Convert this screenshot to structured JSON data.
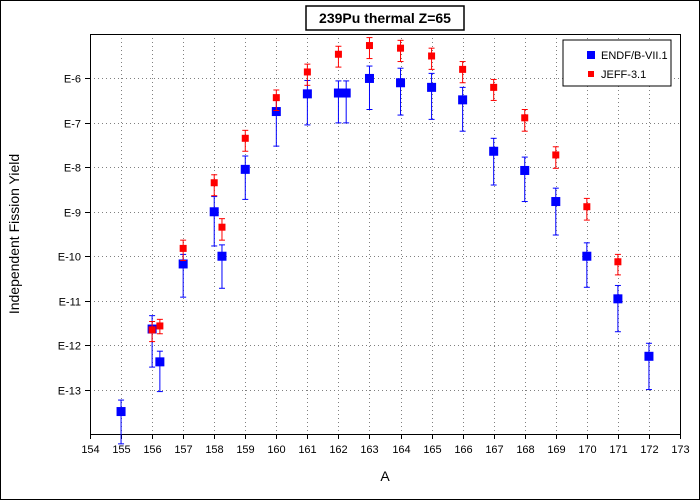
{
  "chart_data": {
    "type": "scatter",
    "title": "239Pu thermal Z=65",
    "xlabel": "A",
    "ylabel": "Independent Fission Yield",
    "xlim": [
      154,
      173
    ],
    "ylim": [
      1e-14,
      1e-05
    ],
    "yscale": "log",
    "x_ticks": [
      "154",
      "155",
      "156",
      "157",
      "158",
      "159",
      "160",
      "161",
      "162",
      "163",
      "164",
      "165",
      "166",
      "167",
      "168",
      "169",
      "170",
      "171",
      "172",
      "173"
    ],
    "y_ticks": [
      {
        "value": 1e-06,
        "label": "E-6"
      },
      {
        "value": 1e-07,
        "label": "E-7"
      },
      {
        "value": 1e-08,
        "label": "E-8"
      },
      {
        "value": 1e-09,
        "label": "E-9"
      },
      {
        "value": 1e-10,
        "label": "E-10"
      },
      {
        "value": 1e-11,
        "label": "E-11"
      },
      {
        "value": 1e-12,
        "label": "E-12"
      },
      {
        "value": 1e-13,
        "label": "E-13"
      }
    ],
    "grid": true,
    "legend_position": "top-right",
    "series": [
      {
        "name": "ENDF/B-VII.1",
        "color": "#0000ff",
        "marker": "square",
        "points": [
          {
            "x": 155,
            "y": 3.2e-14,
            "lo": 6e-15,
            "hi": 5.8e-14
          },
          {
            "x": 156,
            "y": 2.3e-12,
            "lo": 3.2e-13,
            "hi": 4.6e-12
          },
          {
            "x": 156.25,
            "y": 4.2e-13,
            "lo": 9e-14,
            "hi": 7.3e-13
          },
          {
            "x": 157,
            "y": 6.7e-11,
            "lo": 1.2e-11,
            "hi": 1.1e-10
          },
          {
            "x": 158,
            "y": 1e-09,
            "lo": 1.7e-10,
            "hi": 2.2e-09
          },
          {
            "x": 158.25,
            "y": 1e-10,
            "lo": 1.9e-11,
            "hi": 1.8e-10
          },
          {
            "x": 159,
            "y": 9e-09,
            "lo": 1.9e-09,
            "hi": 1.8e-08
          },
          {
            "x": 160,
            "y": 1.8e-07,
            "lo": 3e-08,
            "hi": 3.6e-07
          },
          {
            "x": 161,
            "y": 4.5e-07,
            "lo": 9e-08,
            "hi": 9e-07
          },
          {
            "x": 162,
            "y": 4.7e-07,
            "lo": 1e-07,
            "hi": 8.8e-07
          },
          {
            "x": 162.25,
            "y": 4.7e-07,
            "lo": 1e-07,
            "hi": 8.8e-07
          },
          {
            "x": 163,
            "y": 1e-06,
            "lo": 2e-07,
            "hi": 1.9e-06
          },
          {
            "x": 164,
            "y": 8e-07,
            "lo": 1.5e-07,
            "hi": 1.7e-06
          },
          {
            "x": 165,
            "y": 6.3e-07,
            "lo": 1.2e-07,
            "hi": 1.3e-06
          },
          {
            "x": 166,
            "y": 3.3e-07,
            "lo": 6.5e-08,
            "hi": 6.3e-07
          },
          {
            "x": 167,
            "y": 2.3e-08,
            "lo": 4e-09,
            "hi": 4.5e-08
          },
          {
            "x": 168,
            "y": 8.5e-09,
            "lo": 1.7e-09,
            "hi": 1.7e-08
          },
          {
            "x": 169,
            "y": 1.7e-09,
            "lo": 3e-10,
            "hi": 3.4e-09
          },
          {
            "x": 170,
            "y": 1e-10,
            "lo": 2e-11,
            "hi": 2e-10
          },
          {
            "x": 171,
            "y": 1.1e-11,
            "lo": 2e-12,
            "hi": 2.2e-11
          },
          {
            "x": 172,
            "y": 5.6e-13,
            "lo": 1e-13,
            "hi": 1.1e-12
          }
        ]
      },
      {
        "name": "JEFF-3.1",
        "color": "#ff0000",
        "marker": "square",
        "points": [
          {
            "x": 156,
            "y": 2.2e-12,
            "lo": 1.2e-12,
            "hi": 3.4e-12
          },
          {
            "x": 156.25,
            "y": 2.7e-12,
            "lo": 1.8e-12,
            "hi": 3.8e-12
          },
          {
            "x": 157,
            "y": 1.5e-10,
            "lo": 8e-11,
            "hi": 2.3e-10
          },
          {
            "x": 158,
            "y": 4.5e-09,
            "lo": 2.3e-09,
            "hi": 6.8e-09
          },
          {
            "x": 158.25,
            "y": 4.5e-10,
            "lo": 2.3e-10,
            "hi": 7e-10
          },
          {
            "x": 159,
            "y": 4.5e-08,
            "lo": 2.3e-08,
            "hi": 6.8e-08
          },
          {
            "x": 160,
            "y": 3.7e-07,
            "lo": 1.9e-07,
            "hi": 5.5e-07
          },
          {
            "x": 161,
            "y": 1.4e-06,
            "lo": 7e-07,
            "hi": 2.1e-06
          },
          {
            "x": 162,
            "y": 3.5e-06,
            "lo": 1.8e-06,
            "hi": 5.3e-06
          },
          {
            "x": 163,
            "y": 5.5e-06,
            "lo": 2.8e-06,
            "hi": 8.3e-06
          },
          {
            "x": 164,
            "y": 4.8e-06,
            "lo": 2.4e-06,
            "hi": 7.2e-06
          },
          {
            "x": 165,
            "y": 3.2e-06,
            "lo": 1.6e-06,
            "hi": 4.8e-06
          },
          {
            "x": 166,
            "y": 1.6e-06,
            "lo": 8e-07,
            "hi": 2.4e-06
          },
          {
            "x": 167,
            "y": 6.3e-07,
            "lo": 3.2e-07,
            "hi": 9.5e-07
          },
          {
            "x": 168,
            "y": 1.3e-07,
            "lo": 6.5e-08,
            "hi": 2e-07
          },
          {
            "x": 169,
            "y": 1.9e-08,
            "lo": 9.5e-09,
            "hi": 2.9e-08
          },
          {
            "x": 170,
            "y": 1.3e-09,
            "lo": 6.5e-10,
            "hi": 2e-09
          },
          {
            "x": 171,
            "y": 7.5e-11,
            "lo": 3.8e-11,
            "hi": 1.1e-10
          }
        ]
      }
    ]
  }
}
